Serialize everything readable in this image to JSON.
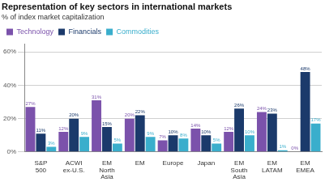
{
  "chart_data": {
    "type": "bar",
    "title": "Representation of key sectors in international markets",
    "subtitle": "% of index market capitalization",
    "categories": [
      "S&P\n500",
      "ACWI\nex-U.S.",
      "EM\nNorth\nAsia",
      "EM",
      "Europe",
      "Japan",
      "EM\nSouth\nAsia",
      "EM\nLATAM",
      "EM\nEMEA"
    ],
    "series": [
      {
        "name": "Technology",
        "color": "#7B52AB",
        "values": [
          27,
          12,
          31,
          20,
          7,
          14,
          12,
          24,
          0
        ],
        "value_labels": [
          "27%",
          "12%",
          "31%",
          "20%",
          "7%",
          "14%",
          "12%",
          "24%",
          "0%"
        ]
      },
      {
        "name": "Financials",
        "color": "#1B3A6B",
        "values": [
          11,
          20,
          15,
          22,
          10,
          10,
          26,
          23,
          48
        ],
        "value_labels": [
          "11%",
          "20%",
          "15%",
          "22%",
          "10%",
          "10%",
          "26%",
          "23%",
          "48%"
        ]
      },
      {
        "name": "Commodities",
        "color": "#3AAECC",
        "values": [
          3,
          9,
          5,
          9,
          8,
          5,
          10,
          1,
          17
        ],
        "value_labels": [
          "3%",
          "9%",
          "5%",
          "9%",
          "8%",
          "5%",
          "10%",
          "1%",
          "17%"
        ]
      }
    ],
    "ylim": [
      0,
      65
    ],
    "yticks": [
      {
        "value": 0,
        "label": "0%"
      },
      {
        "value": 20,
        "label": "20%"
      },
      {
        "value": 40,
        "label": "40%"
      },
      {
        "value": 60,
        "label": "60%"
      }
    ],
    "grid": true,
    "legend": "top",
    "data_labels": true
  }
}
